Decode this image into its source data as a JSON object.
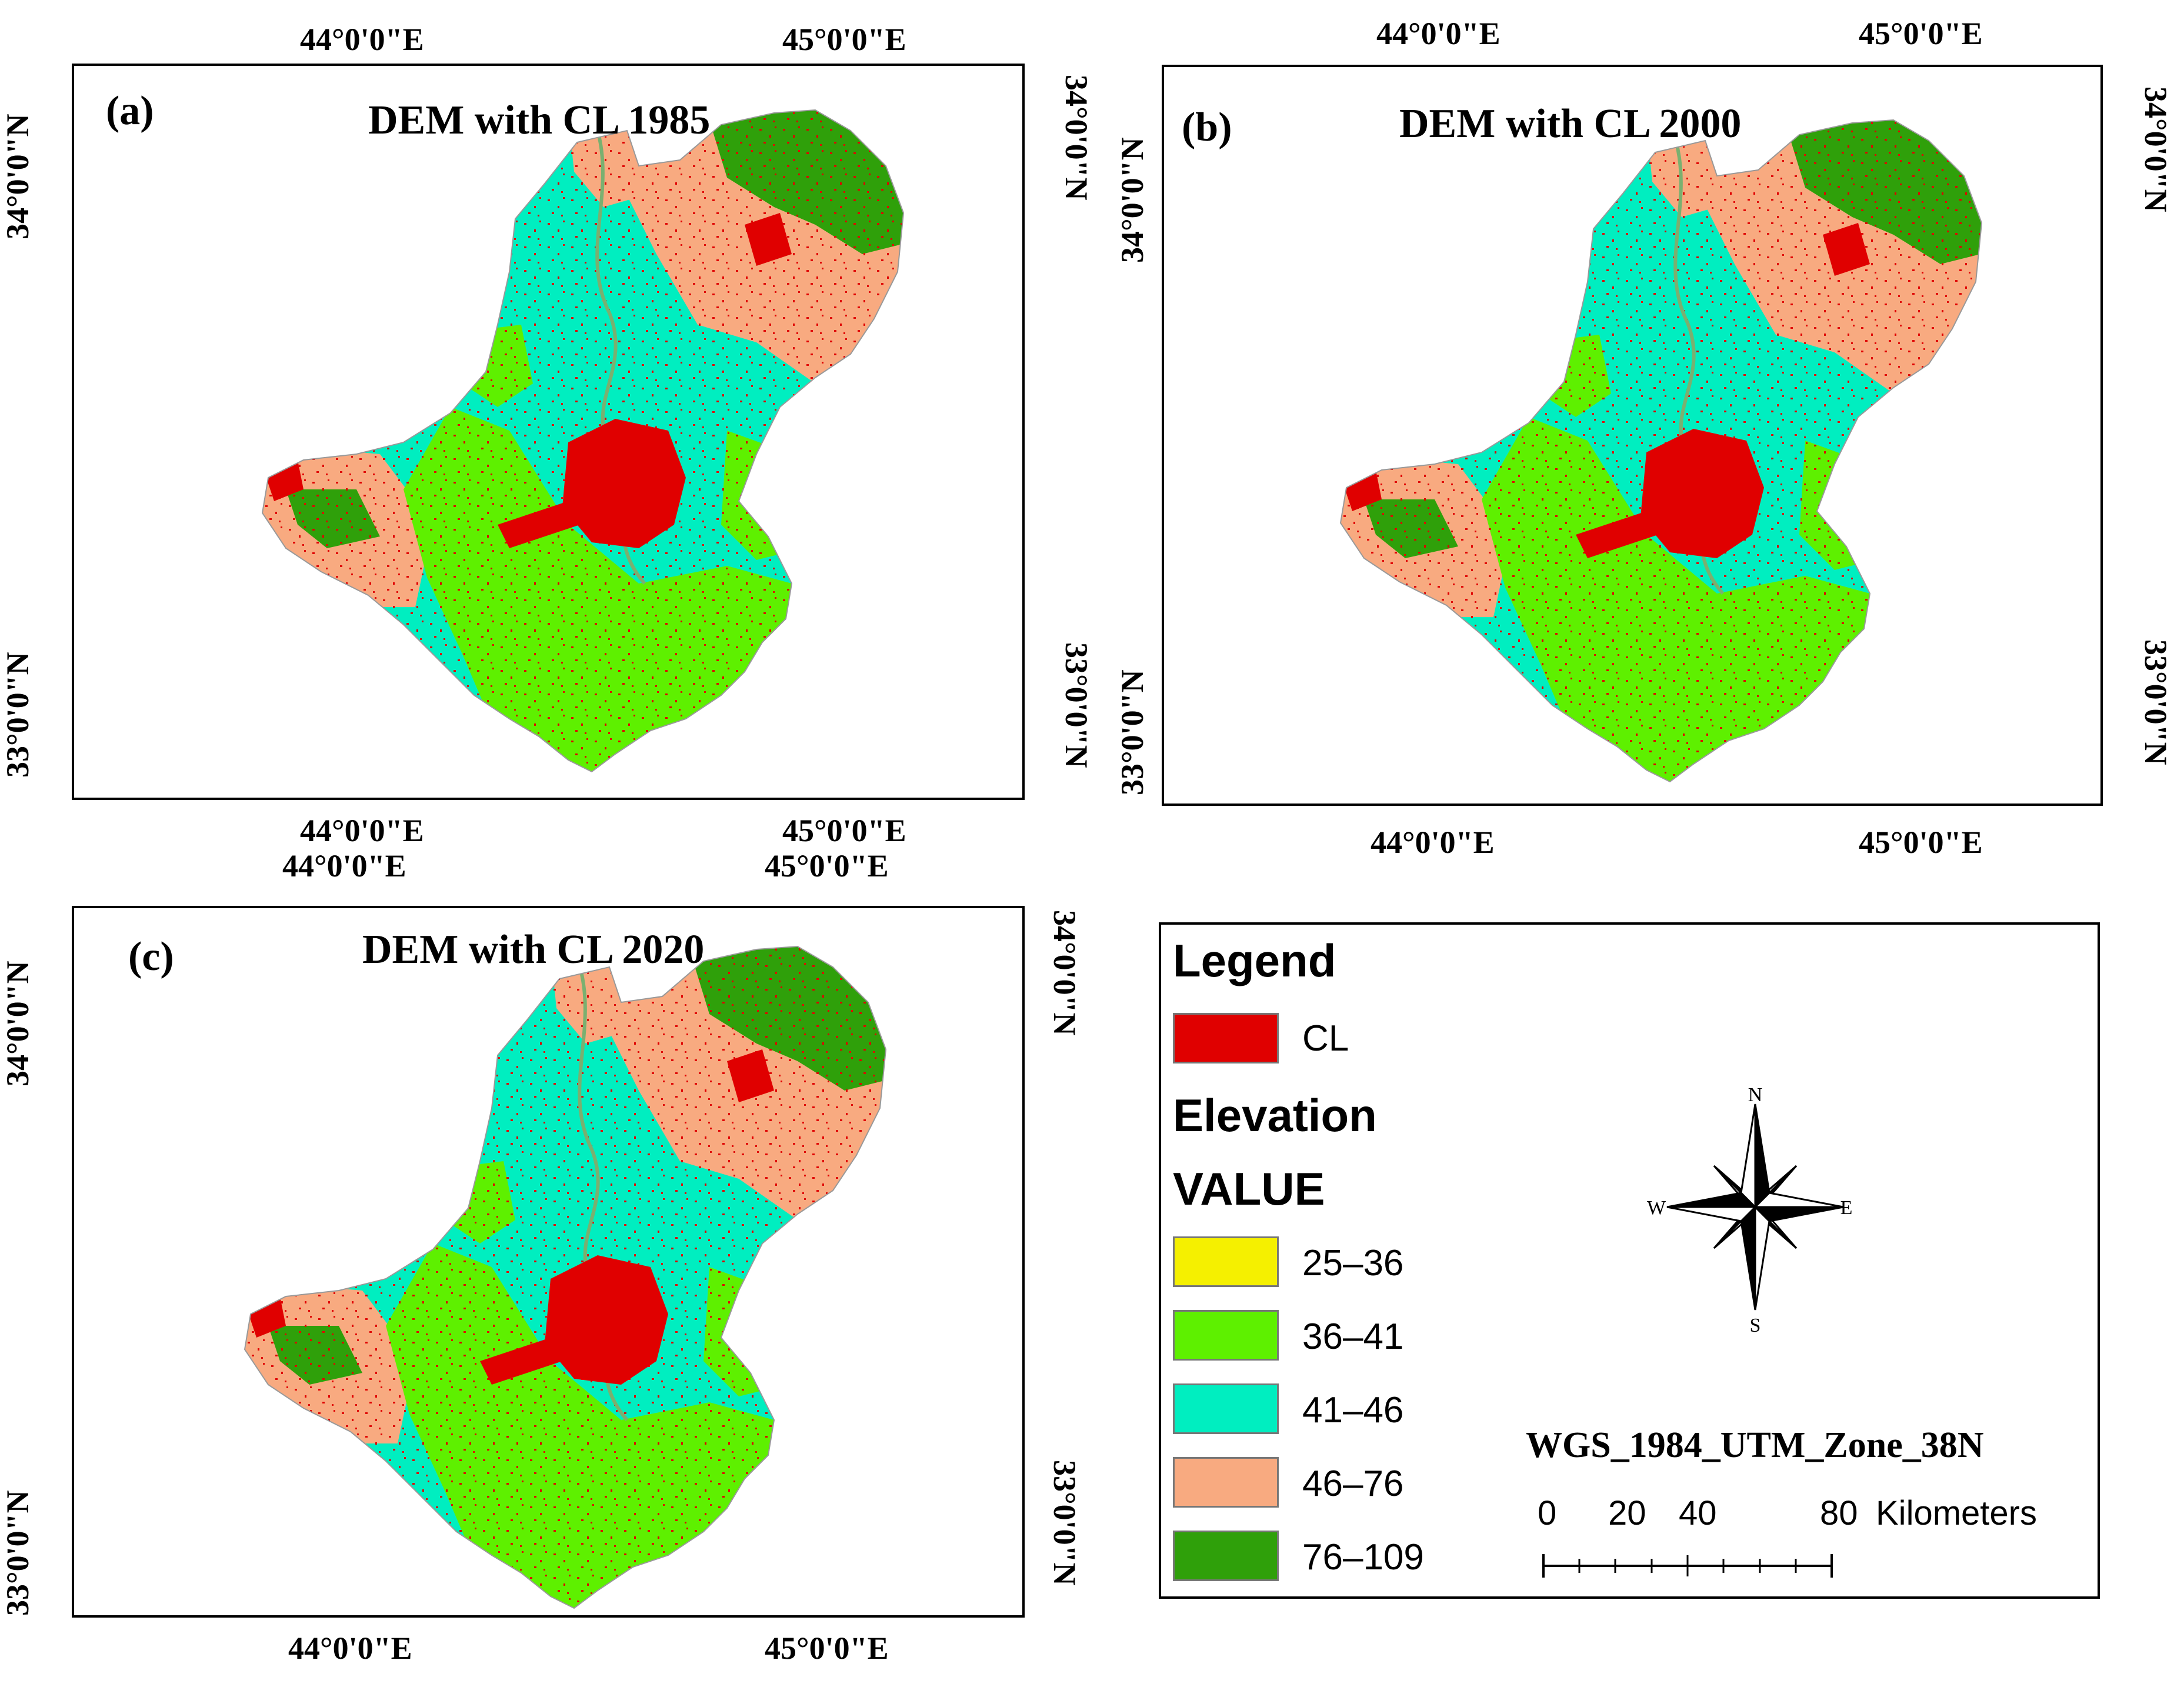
{
  "colors": {
    "cl": "#e00000",
    "c25_36": "#f5f000",
    "c36_41": "#5ef000",
    "c41_46": "#00eec0",
    "c46_76": "#f8aa80",
    "c76_109": "#2fa00a"
  },
  "axes": {
    "lon_44": "44°0'0\"E",
    "lon_45": "45°0'0\"E",
    "lat_34": "34°0'0\"N",
    "lat_33": "33°0'0\"N"
  },
  "panels": [
    {
      "label": "(a)",
      "title": "DEM with CL 1985"
    },
    {
      "label": "(b)",
      "title": "DEM with CL 2000"
    },
    {
      "label": "(c)",
      "title": "DEM with CL 2020"
    }
  ],
  "legend": {
    "title": "Legend",
    "cl_label": "CL",
    "elevation_heading": "Elevation",
    "value_heading": "VALUE",
    "classes": [
      {
        "label": "25–36",
        "color": "#f5f000"
      },
      {
        "label": "36–41",
        "color": "#5ef000"
      },
      {
        "label": "41–46",
        "color": "#00eec0"
      },
      {
        "label": "46–76",
        "color": "#f8aa80"
      },
      {
        "label": "76–109",
        "color": "#2fa00a"
      }
    ]
  },
  "compass": {
    "n": "N",
    "s": "S",
    "e": "E",
    "w": "W",
    "icon": "compass-rose-icon"
  },
  "projection": "WGS_1984_UTM_Zone_38N",
  "scalebar": {
    "ticks": [
      "0",
      "20",
      "40",
      "80"
    ],
    "unit": "Kilometers"
  }
}
